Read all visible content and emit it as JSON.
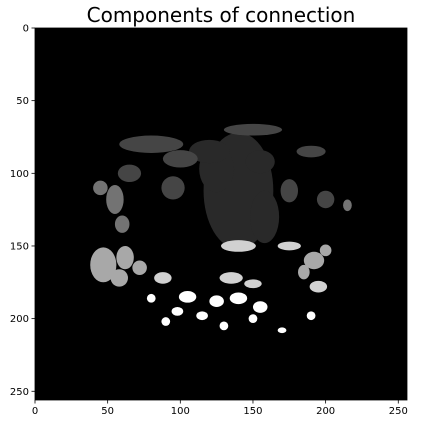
{
  "chart_data": {
    "type": "heatmap",
    "title": "Components of connection",
    "xlabel": "",
    "ylabel": "",
    "xlim": [
      0,
      256
    ],
    "ylim": [
      256,
      0
    ],
    "x_ticks": [
      0,
      50,
      100,
      150,
      200,
      250
    ],
    "y_ticks": [
      0,
      50,
      100,
      150,
      200,
      250
    ],
    "grid": false,
    "colormap": "gray",
    "background_value": 0,
    "components": [
      {
        "label_value": 0.16,
        "description": "large central component",
        "regions": [
          {
            "cx": 140,
            "cy": 112,
            "rx": 24,
            "ry": 40
          },
          {
            "cx": 125,
            "cy": 97,
            "rx": 12,
            "ry": 16
          },
          {
            "cx": 158,
            "cy": 130,
            "rx": 10,
            "ry": 18
          },
          {
            "cx": 120,
            "cy": 85,
            "rx": 14,
            "ry": 8
          },
          {
            "cx": 155,
            "cy": 92,
            "rx": 10,
            "ry": 8
          }
        ]
      },
      {
        "label_value": 0.27,
        "description": "upper scattered component",
        "regions": [
          {
            "cx": 80,
            "cy": 80,
            "rx": 22,
            "ry": 6
          },
          {
            "cx": 150,
            "cy": 70,
            "rx": 20,
            "ry": 4
          },
          {
            "cx": 100,
            "cy": 90,
            "rx": 12,
            "ry": 6
          },
          {
            "cx": 65,
            "cy": 100,
            "rx": 8,
            "ry": 6
          },
          {
            "cx": 95,
            "cy": 110,
            "rx": 8,
            "ry": 8
          },
          {
            "cx": 190,
            "cy": 85,
            "rx": 10,
            "ry": 4
          },
          {
            "cx": 175,
            "cy": 112,
            "rx": 6,
            "ry": 8
          },
          {
            "cx": 200,
            "cy": 118,
            "rx": 6,
            "ry": 6
          }
        ]
      },
      {
        "label_value": 0.45,
        "description": "left side component",
        "regions": [
          {
            "cx": 55,
            "cy": 118,
            "rx": 6,
            "ry": 10
          },
          {
            "cx": 60,
            "cy": 135,
            "rx": 5,
            "ry": 6
          },
          {
            "cx": 45,
            "cy": 110,
            "rx": 5,
            "ry": 5
          },
          {
            "cx": 215,
            "cy": 122,
            "rx": 3,
            "ry": 4
          }
        ]
      },
      {
        "label_value": 0.66,
        "description": "lower left and right dense component",
        "regions": [
          {
            "cx": 47,
            "cy": 163,
            "rx": 9,
            "ry": 12
          },
          {
            "cx": 62,
            "cy": 158,
            "rx": 6,
            "ry": 8
          },
          {
            "cx": 58,
            "cy": 172,
            "rx": 6,
            "ry": 6
          },
          {
            "cx": 72,
            "cy": 165,
            "rx": 5,
            "ry": 5
          },
          {
            "cx": 192,
            "cy": 160,
            "rx": 7,
            "ry": 6
          },
          {
            "cx": 185,
            "cy": 168,
            "rx": 4,
            "ry": 5
          },
          {
            "cx": 200,
            "cy": 153,
            "rx": 4,
            "ry": 4
          }
        ]
      },
      {
        "label_value": 0.82,
        "description": "lower scattered component",
        "regions": [
          {
            "cx": 140,
            "cy": 150,
            "rx": 12,
            "ry": 4
          },
          {
            "cx": 175,
            "cy": 150,
            "rx": 8,
            "ry": 3
          },
          {
            "cx": 88,
            "cy": 172,
            "rx": 6,
            "ry": 4
          },
          {
            "cx": 135,
            "cy": 172,
            "rx": 8,
            "ry": 4
          },
          {
            "cx": 150,
            "cy": 176,
            "rx": 6,
            "ry": 3
          },
          {
            "cx": 195,
            "cy": 178,
            "rx": 6,
            "ry": 4
          }
        ]
      },
      {
        "label_value": 1.0,
        "description": "bottom bright component",
        "regions": [
          {
            "cx": 105,
            "cy": 185,
            "rx": 6,
            "ry": 4
          },
          {
            "cx": 125,
            "cy": 188,
            "rx": 5,
            "ry": 4
          },
          {
            "cx": 140,
            "cy": 186,
            "rx": 6,
            "ry": 4
          },
          {
            "cx": 155,
            "cy": 192,
            "rx": 5,
            "ry": 4
          },
          {
            "cx": 98,
            "cy": 195,
            "rx": 4,
            "ry": 3
          },
          {
            "cx": 115,
            "cy": 198,
            "rx": 4,
            "ry": 3
          },
          {
            "cx": 90,
            "cy": 202,
            "rx": 3,
            "ry": 3
          },
          {
            "cx": 80,
            "cy": 186,
            "rx": 3,
            "ry": 3
          },
          {
            "cx": 190,
            "cy": 198,
            "rx": 3,
            "ry": 3
          },
          {
            "cx": 170,
            "cy": 208,
            "rx": 3,
            "ry": 2
          },
          {
            "cx": 130,
            "cy": 205,
            "rx": 3,
            "ry": 3
          },
          {
            "cx": 150,
            "cy": 200,
            "rx": 3,
            "ry": 3
          }
        ]
      }
    ]
  }
}
